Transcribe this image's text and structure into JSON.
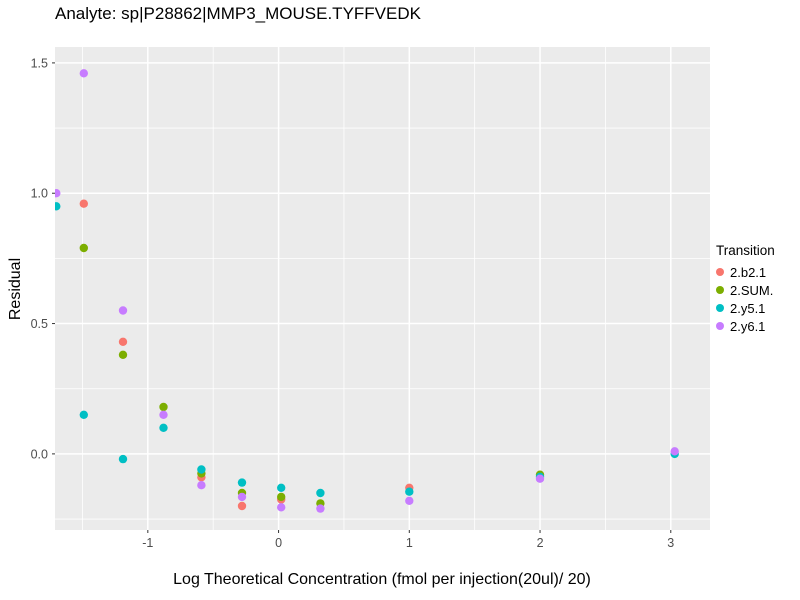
{
  "chart_data": {
    "type": "scatter",
    "title": "Analyte: sp|P28862|MMP3_MOUSE.TYFFVEDK",
    "xlabel": "Log Theoretical Concentration (fmol per injection(20ul)/ 20)",
    "ylabel": "Residual",
    "legend_title": "Transition",
    "legend_position": "right",
    "grid": true,
    "panel_bg": "#EBEBEB",
    "grid_color": "#FFFFFF",
    "tick_color": "#333333",
    "tick_label_color": "#4D4D4D",
    "xlim": [
      -1.71,
      3.3
    ],
    "ylim": [
      -0.292,
      1.561
    ],
    "x_ticks": [
      -1,
      0,
      1,
      2,
      3
    ],
    "x_tick_labels": [
      "-1",
      "0",
      "1",
      "2",
      "3"
    ],
    "x_minor_ticks": [
      -1.5,
      -0.5,
      0.5,
      1.5,
      2.5
    ],
    "y_ticks": [
      0.0,
      0.5,
      1.0,
      1.5
    ],
    "y_tick_labels": [
      "0.0",
      "0.5",
      "1.0",
      "1.5"
    ],
    "y_minor_ticks": [
      -0.25,
      0.25,
      0.75,
      1.25
    ],
    "series": [
      {
        "name": "2.b2.1",
        "color": "#F8766D",
        "points": [
          [
            -1.49,
            0.96
          ],
          [
            -1.19,
            0.43
          ],
          [
            -0.59,
            -0.09
          ],
          [
            -0.28,
            -0.2
          ],
          [
            0.02,
            -0.175
          ],
          [
            1.0,
            -0.13
          ]
        ]
      },
      {
        "name": "2.SUM.",
        "color": "#7CAE00",
        "points": [
          [
            -1.49,
            0.79
          ],
          [
            -1.19,
            0.38
          ],
          [
            -0.88,
            0.18
          ],
          [
            -0.59,
            -0.075
          ],
          [
            -0.28,
            -0.15
          ],
          [
            0.02,
            -0.165
          ],
          [
            0.32,
            -0.19
          ],
          [
            2.0,
            -0.08
          ]
        ]
      },
      {
        "name": "2.y5.1",
        "color": "#00BFC4",
        "points": [
          [
            -1.7,
            0.95
          ],
          [
            -1.49,
            0.15
          ],
          [
            -1.19,
            -0.02
          ],
          [
            -0.88,
            0.1
          ],
          [
            -0.59,
            -0.06
          ],
          [
            -0.28,
            -0.11
          ],
          [
            0.02,
            -0.13
          ],
          [
            0.32,
            -0.15
          ],
          [
            1.0,
            -0.145
          ],
          [
            2.0,
            -0.088
          ],
          [
            3.03,
            0.0
          ]
        ]
      },
      {
        "name": "2.y6.1",
        "color": "#C77CFF",
        "points": [
          [
            -1.7,
            1.0
          ],
          [
            -1.49,
            1.46
          ],
          [
            -1.19,
            0.55
          ],
          [
            -0.88,
            0.15
          ],
          [
            -0.59,
            -0.12
          ],
          [
            -0.28,
            -0.165
          ],
          [
            0.02,
            -0.205
          ],
          [
            0.32,
            -0.21
          ],
          [
            1.0,
            -0.18
          ],
          [
            2.0,
            -0.095
          ],
          [
            3.03,
            0.01
          ]
        ]
      }
    ]
  }
}
